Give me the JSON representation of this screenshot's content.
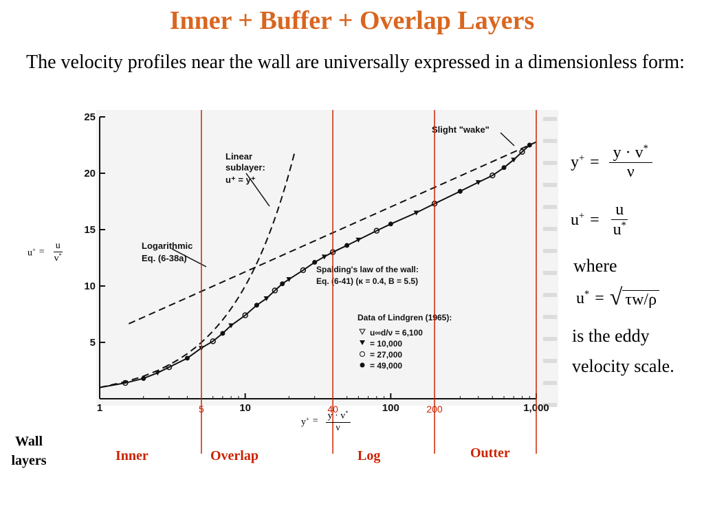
{
  "title": "Inner + Buffer + Overlap Layers",
  "intro": "The velocity profiles near the wall are universally expressed  in a dimensionless form:",
  "equations": {
    "yplus_lhs": "y",
    "yplus_num": "y · v",
    "yplus_den": "ν",
    "uplus_lhs": "u",
    "uplus_num": "u",
    "uplus_den": "u",
    "where": "where",
    "ustar_lhs": "u",
    "ustar_rhs": "τw/ρ",
    "eddy_1": "is the eddy",
    "eddy_2": "velocity scale."
  },
  "chart_data": {
    "type": "scatter",
    "x_scale": "log",
    "xlim": [
      1,
      1000
    ],
    "ylim": [
      0,
      25
    ],
    "x_ticks": [
      "1",
      "10",
      "100",
      "1,000"
    ],
    "y_ticks": [
      "5",
      "10",
      "15",
      "20",
      "25"
    ],
    "annotations": {
      "linear": [
        "Linear",
        "sublayer:",
        "u⁺ = y⁺"
      ],
      "log": [
        "Logarithmic",
        "Eq. (6-38a)"
      ],
      "spalding": [
        "Spalding's law of the wall:",
        "Eq. (6-41)  (κ = 0.4, B = 5.5)"
      ],
      "wake": "Slight \"wake\"",
      "lindgren_title": "Data of Lindgren (1965):",
      "lindgren_items": [
        "u∞d/ν = 6,100",
        "= 10,000",
        "= 27,000",
        "= 49,000"
      ]
    },
    "data_points": [
      {
        "x": 1.5,
        "y": 1.4
      },
      {
        "x": 2,
        "y": 1.8
      },
      {
        "x": 2.5,
        "y": 2.3
      },
      {
        "x": 3,
        "y": 2.8
      },
      {
        "x": 4,
        "y": 3.6
      },
      {
        "x": 5,
        "y": 4.5
      },
      {
        "x": 6,
        "y": 5.1
      },
      {
        "x": 7,
        "y": 5.8
      },
      {
        "x": 8,
        "y": 6.5
      },
      {
        "x": 10,
        "y": 7.4
      },
      {
        "x": 12,
        "y": 8.3
      },
      {
        "x": 14,
        "y": 8.9
      },
      {
        "x": 16,
        "y": 9.6
      },
      {
        "x": 18,
        "y": 10.2
      },
      {
        "x": 20,
        "y": 10.6
      },
      {
        "x": 25,
        "y": 11.4
      },
      {
        "x": 30,
        "y": 12.1
      },
      {
        "x": 35,
        "y": 12.6
      },
      {
        "x": 40,
        "y": 13.0
      },
      {
        "x": 50,
        "y": 13.6
      },
      {
        "x": 60,
        "y": 14.1
      },
      {
        "x": 80,
        "y": 14.9
      },
      {
        "x": 100,
        "y": 15.5
      },
      {
        "x": 150,
        "y": 16.5
      },
      {
        "x": 200,
        "y": 17.3
      },
      {
        "x": 300,
        "y": 18.4
      },
      {
        "x": 400,
        "y": 19.2
      },
      {
        "x": 500,
        "y": 19.8
      },
      {
        "x": 600,
        "y": 20.5
      },
      {
        "x": 700,
        "y": 21.2
      },
      {
        "x": 800,
        "y": 21.9
      },
      {
        "x": 900,
        "y": 22.5
      }
    ],
    "lines": {
      "linear_sublayer": "u+ = y+",
      "log_law": "u+ = ln(y+)/0.4 + 5.5"
    },
    "vlines": [
      {
        "x": 5,
        "label": "5"
      },
      {
        "x": 40,
        "label": "40"
      },
      {
        "x": 200,
        "label": "200"
      },
      {
        "x": 1000,
        "label": ""
      }
    ]
  },
  "small_eqs": {
    "uplus_lhs": "u",
    "uplus_num": "u",
    "uplus_den": "v",
    "yplus_lhs": "y",
    "yplus_num": "y · v",
    "yplus_den": "ν"
  },
  "regions": {
    "wall_1": "Wall",
    "wall_2": "layers",
    "inner": "Inner",
    "overlap": "Overlap",
    "log": "Log",
    "outter": "Outter"
  },
  "colors": {
    "title": "#d9661f",
    "regions": "#cc2200",
    "vlines": "#cc2200"
  }
}
